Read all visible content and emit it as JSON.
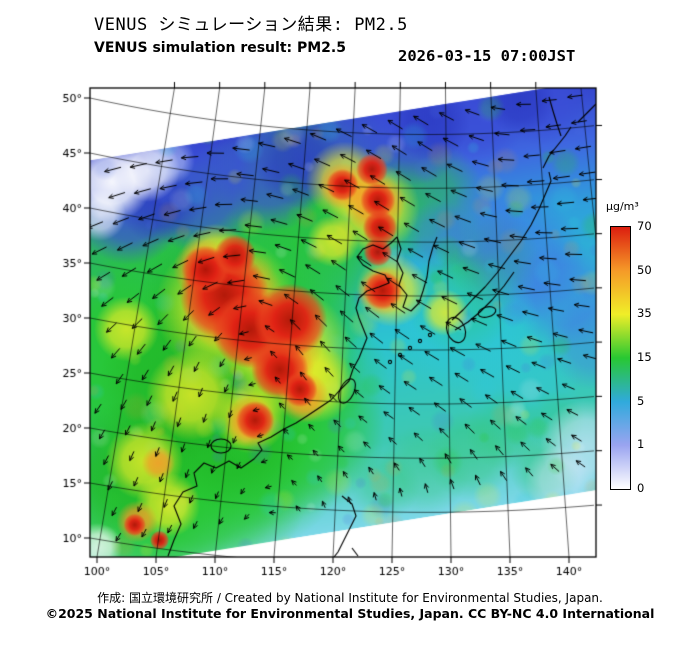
{
  "header": {
    "title_jp": "VENUS シミュレーション結果: PM2.5",
    "title_en": "VENUS simulation result: PM2.5",
    "timestamp": "2026-03-15 07:00JST"
  },
  "footer": {
    "credit": "作成: 国立環境研究所 / Created by National Institute for Environmental Studies, Japan.",
    "copyright": "©2025 National Institute for Environmental Studies, Japan. CC BY-NC 4.0 International"
  },
  "chart_data": {
    "type": "heatmap",
    "title": "VENUS simulation result: PM2.5",
    "variable": "PM2.5 surface concentration",
    "unit": "μg/m³",
    "timestamp": "2026-03-15 07:00JST",
    "region": "East Asia, rotated model domain with wind-vector overlay",
    "lat_ticks": [
      "50°",
      "45°",
      "40°",
      "35°",
      "30°",
      "25°",
      "20°",
      "15°",
      "10°"
    ],
    "lat_values": [
      50,
      45,
      40,
      35,
      30,
      25,
      20,
      15,
      10
    ],
    "lon_ticks": [
      "100°",
      "105°",
      "110°",
      "115°",
      "120°",
      "125°",
      "130°",
      "135°",
      "140°"
    ],
    "lon_values": [
      100,
      105,
      110,
      115,
      120,
      125,
      130,
      135,
      140
    ],
    "colorbar": {
      "label": "μg/m³",
      "ticks_top_to_bottom": [
        70,
        50,
        35,
        15,
        5,
        1,
        0
      ],
      "levels_ascending": [
        0,
        1,
        5,
        15,
        35,
        50,
        70
      ],
      "colors_ascending": [
        "#ffffff",
        "#9aa4f0",
        "#30aadc",
        "#28c832",
        "#f0ee28",
        "#f59a28",
        "#dc1e0f"
      ]
    },
    "wind_vectors": "black arrows over model domain",
    "hotspots": {
      "format": [
        "lon_e",
        "lat_n",
        "radius_deg",
        "level_ugm3"
      ],
      "points": [
        [
          111,
          31,
          5.5,
          35
        ],
        [
          116,
          27,
          5.0,
          35
        ],
        [
          123.5,
          40,
          3.5,
          35
        ],
        [
          108,
          23,
          3.5,
          35
        ],
        [
          104,
          17,
          3.0,
          35
        ],
        [
          121,
          42.5,
          3.0,
          35
        ],
        [
          125,
          32.5,
          2.8,
          35
        ],
        [
          106,
          13,
          2.5,
          35
        ],
        [
          102.5,
          29,
          2.5,
          35
        ],
        [
          118.5,
          24,
          3.0,
          35
        ],
        [
          113,
          21,
          2.8,
          35
        ],
        [
          110,
          35.5,
          2.6,
          35
        ],
        [
          120,
          37,
          2.0,
          35
        ],
        [
          129.5,
          30.5,
          1.8,
          35
        ],
        [
          111.5,
          31.5,
          4.0,
          50
        ],
        [
          115.5,
          28,
          3.4,
          50
        ],
        [
          123.5,
          40.5,
          2.4,
          50
        ],
        [
          124.2,
          32.5,
          1.9,
          50
        ],
        [
          117.5,
          22.8,
          2.0,
          50
        ],
        [
          113,
          20.6,
          2.0,
          50
        ],
        [
          109,
          34.5,
          2.3,
          50
        ],
        [
          120.8,
          42,
          1.8,
          50
        ],
        [
          103.4,
          11.5,
          1.6,
          50
        ],
        [
          105.2,
          16.8,
          1.3,
          50
        ],
        [
          116,
          25.5,
          2.2,
          50
        ],
        [
          110.8,
          32.1,
          2.8,
          70
        ],
        [
          113,
          28.9,
          2.4,
          70
        ],
        [
          116.4,
          29.8,
          2.3,
          70
        ],
        [
          115.5,
          25.3,
          1.8,
          70
        ],
        [
          109.2,
          34.4,
          1.5,
          70
        ],
        [
          111.7,
          35.7,
          1.3,
          70
        ],
        [
          120.8,
          42.1,
          1.0,
          70
        ],
        [
          123.3,
          43.5,
          1.0,
          70
        ],
        [
          123.8,
          40.7,
          1.1,
          70
        ],
        [
          124,
          38.2,
          1.1,
          70
        ],
        [
          123.8,
          36,
          0.9,
          70
        ],
        [
          124.2,
          32.5,
          1.2,
          70
        ],
        [
          113.4,
          20.7,
          1.2,
          70
        ],
        [
          117.2,
          23.5,
          1.1,
          70
        ],
        [
          103.2,
          11.2,
          0.7,
          70
        ],
        [
          105.3,
          9.8,
          0.6,
          70
        ]
      ]
    }
  }
}
